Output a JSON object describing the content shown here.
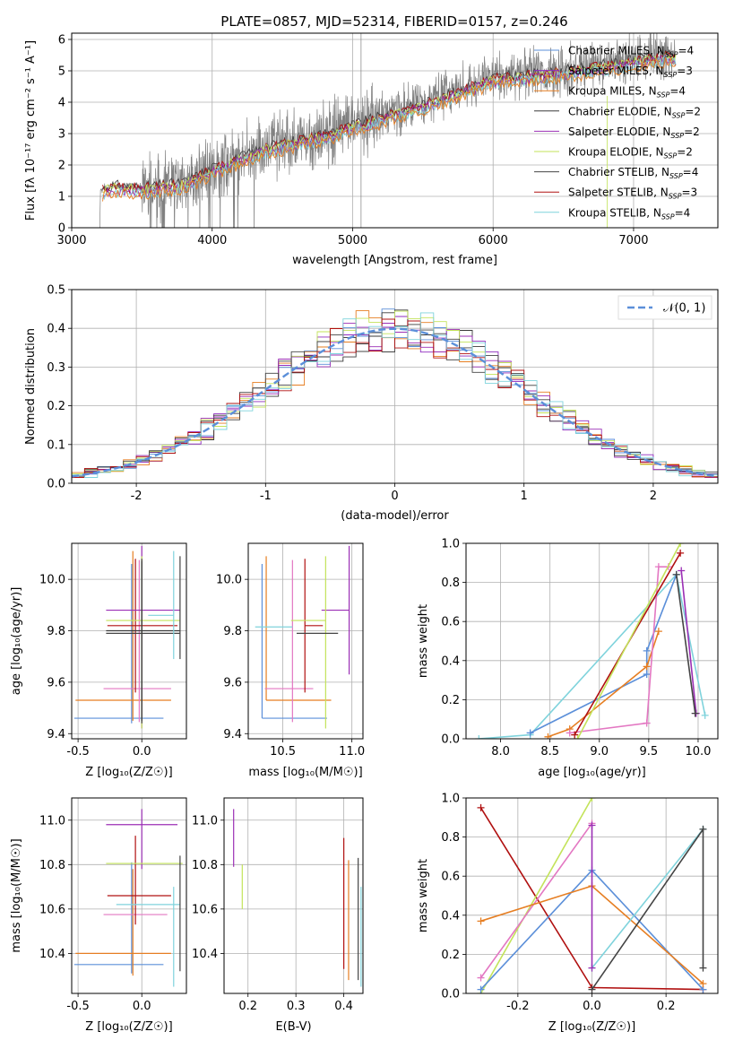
{
  "figure": {
    "title": "PLATE=0857, MJD=52314, FIBERID=0157, z=0.246"
  },
  "colors": {
    "Chabrier MILES": "#5b8fd9",
    "Salpeter MILES": "#8f2bbf",
    "Kroupa MILES": "#e67e22",
    "Chabrier ELODIE": "#3a3a3a",
    "Salpeter ELODIE": "#9b2fb5",
    "Kroupa ELODIE": "#c3e35a",
    "Chabrier STELIB": "#444444",
    "Salpeter STELIB": "#b01010",
    "Kroupa STELIB": "#7fd3dc",
    "Extra pink": "#e377c2",
    "data": "#808080"
  },
  "chart_data": [
    {
      "id": "spectrum",
      "type": "line",
      "xlabel": "wavelength [Angstrom, rest frame]",
      "ylabel": "Flux [fλ 10⁻¹⁷ erg cm⁻² s⁻¹ A⁻¹]",
      "xlim": [
        3000,
        7600
      ],
      "ylim": [
        0,
        6.2
      ],
      "xticks": [
        3000,
        4000,
        5000,
        6000,
        7000
      ],
      "yticks": [
        0,
        1,
        2,
        3,
        4,
        5,
        6
      ],
      "legend_position": "top-right",
      "legend": [
        {
          "label": "Chabrier MILES, N",
          "sub": "SSP",
          "tail": "=4"
        },
        {
          "label": "Salpeter MILES, N",
          "sub": "SSP",
          "tail": "=3"
        },
        {
          "label": "Kroupa MILES, N",
          "sub": "SSP",
          "tail": "=4"
        },
        {
          "label": "Chabrier ELODIE, N",
          "sub": "SSP",
          "tail": "=2"
        },
        {
          "label": "Salpeter ELODIE, N",
          "sub": "SSP",
          "tail": "=2"
        },
        {
          "label": "Kroupa ELODIE, N",
          "sub": "SSP",
          "tail": "=2"
        },
        {
          "label": "Chabrier STELIB, N",
          "sub": "SSP",
          "tail": "=4"
        },
        {
          "label": "Salpeter STELIB, N",
          "sub": "SSP",
          "tail": "=3"
        },
        {
          "label": "Kroupa STELIB, N",
          "sub": "SSP",
          "tail": "=4"
        }
      ],
      "model_trend": {
        "x": [
          3220,
          3300,
          3500,
          3800,
          4000,
          4400,
          4800,
          5200,
          5600,
          6000,
          6400,
          6800,
          7200
        ],
        "y": [
          1.25,
          1.35,
          1.3,
          1.45,
          1.9,
          2.6,
          3.0,
          3.55,
          4.1,
          4.8,
          4.95,
          5.2,
          5.5
        ]
      },
      "data_range": [
        3200,
        7300
      ]
    },
    {
      "id": "residuals",
      "type": "line",
      "xlabel": "(data-model)/error",
      "ylabel": "Normed distribution",
      "xlim": [
        -2.5,
        2.5
      ],
      "ylim": [
        0,
        0.5
      ],
      "xticks": [
        -2,
        -1,
        0,
        1,
        2
      ],
      "yticks": [
        0.0,
        0.1,
        0.2,
        0.3,
        0.4,
        0.5
      ],
      "legend_position": "top-right",
      "legend": [
        {
          "label": "𝒩(0, 1)"
        }
      ],
      "bin_width": 0.1
    },
    {
      "id": "age-vs-Z",
      "type": "scatter",
      "xlabel": "Z [log₁₀(Z/Z☉)]",
      "ylabel": "age  [log₁₀(age/yr)]",
      "xlim": [
        -0.55,
        0.35
      ],
      "ylim": [
        9.38,
        10.14
      ],
      "xticks": [
        -0.5,
        0.0
      ],
      "yticks": [
        9.4,
        9.6,
        9.8,
        10.0
      ],
      "points": [
        {
          "model": "Chabrier MILES",
          "x": -0.08,
          "xerr": [
            0.45,
            0.25
          ],
          "y": 9.46,
          "yerr": [
            0.02,
            0.6
          ]
        },
        {
          "model": "Kroupa MILES",
          "x": -0.07,
          "xerr": [
            0.45,
            0.3
          ],
          "y": 9.53,
          "yerr": [
            0.08,
            0.58
          ]
        },
        {
          "model": "Extra pink",
          "x": -0.02,
          "xerr": [
            0.28,
            0.25
          ],
          "y": 9.575,
          "yerr": [
            0.13,
            0.5
          ]
        },
        {
          "model": "Salpeter STELIB",
          "x": -0.05,
          "xerr": [
            0.22,
            0.33
          ],
          "y": 9.82,
          "yerr": [
            0.26,
            0.26
          ]
        },
        {
          "model": "Salpeter ELODIE",
          "x": 0.0,
          "xerr": [
            0.28,
            0.3
          ],
          "y": 9.88,
          "yerr": [
            0.46,
            0.25
          ]
        },
        {
          "model": "Kroupa ELODIE",
          "x": 0.0,
          "xerr": [
            0.28,
            0.3
          ],
          "y": 9.84,
          "yerr": [
            0.42,
            0.25
          ]
        },
        {
          "model": "Chabrier STELIB",
          "x": 0.0,
          "xerr": [
            0.28,
            0.3
          ],
          "y": 9.79,
          "yerr": [
            0.35,
            0.28
          ]
        },
        {
          "model": "Chabrier ELODIE",
          "x": 0.0,
          "xerr": [
            0.28,
            0.3
          ],
          "y": 9.8,
          "yerr": [
            0.35,
            0.28
          ]
        },
        {
          "model": "Kroupa STELIB",
          "x": 0.25,
          "xerr": [
            0.2,
            0.0
          ],
          "y": 9.86,
          "yerr": [
            0.17,
            0.25
          ]
        },
        {
          "model": "Chabrier STELIB",
          "x": 0.3,
          "xerr": [
            0.0,
            0.0
          ],
          "y": 9.79,
          "yerr": [
            0.1,
            0.3
          ]
        }
      ]
    },
    {
      "id": "age-vs-mass",
      "type": "scatter",
      "xlabel": "mass [log₁₀(M/M☉)]",
      "xlim": [
        10.25,
        11.08
      ],
      "ylim": [
        9.38,
        10.14
      ],
      "xticks": [
        10.5,
        11.0
      ],
      "yticks": [
        9.4,
        9.6,
        9.8,
        10.0
      ],
      "points": [
        {
          "model": "Chabrier MILES",
          "x": 10.35,
          "xerr": [
            0.0,
            0.47
          ],
          "y": 9.46,
          "yerr": [
            0.0,
            0.6
          ]
        },
        {
          "model": "Kroupa MILES",
          "x": 10.38,
          "xerr": [
            0.0,
            0.47
          ],
          "y": 9.53,
          "yerr": [
            0.0,
            0.56
          ]
        },
        {
          "model": "Extra pink",
          "x": 10.57,
          "xerr": [
            0.2,
            0.15
          ],
          "y": 9.575,
          "yerr": [
            0.13,
            0.5
          ]
        },
        {
          "model": "Salpeter STELIB",
          "x": 10.66,
          "xerr": [
            0.0,
            0.13
          ],
          "y": 9.82,
          "yerr": [
            0.26,
            0.26
          ]
        },
        {
          "model": "Salpeter ELODIE",
          "x": 10.98,
          "xerr": [
            0.2,
            0.0
          ],
          "y": 9.88,
          "yerr": [
            0.25,
            0.25
          ]
        },
        {
          "model": "Kroupa ELODIE",
          "x": 10.81,
          "xerr": [
            0.25,
            0.0
          ],
          "y": 9.84,
          "yerr": [
            0.42,
            0.25
          ]
        },
        {
          "model": "Chabrier STELIB",
          "x": 10.6,
          "xerr": [
            0.0,
            0.3
          ],
          "y": 9.79,
          "yerr": [
            0.0,
            0.0
          ]
        },
        {
          "model": "Kroupa STELIB",
          "x": 10.45,
          "xerr": [
            0.15,
            0.12
          ],
          "y": 9.815,
          "yerr": [
            0.0,
            0.0
          ]
        }
      ]
    },
    {
      "id": "mass-weight-vs-age",
      "type": "line",
      "xlabel": "age  [log₁₀(age/yr)]",
      "ylabel": "mass weight",
      "xlim": [
        7.65,
        10.2
      ],
      "ylim": [
        0,
        1
      ],
      "xticks": [
        8.0,
        8.5,
        9.0,
        9.5,
        10.0
      ],
      "yticks": [
        0.0,
        0.2,
        0.4,
        0.6,
        0.8,
        1.0
      ],
      "series": [
        {
          "model": "Kroupa STELIB",
          "x": [
            7.78,
            8.3,
            9.78,
            10.07
          ],
          "y": [
            0.0,
            0.02,
            0.84,
            0.12
          ]
        },
        {
          "model": "Chabrier MILES",
          "x": [
            8.3,
            9.48,
            9.48,
            9.78
          ],
          "y": [
            0.03,
            0.33,
            0.45,
            0.84
          ]
        },
        {
          "model": "Kroupa MILES",
          "x": [
            8.48,
            8.7,
            9.48,
            9.6
          ],
          "y": [
            0.01,
            0.05,
            0.37,
            0.55
          ]
        },
        {
          "model": "Extra pink",
          "x": [
            8.7,
            9.48,
            9.6,
            9.7
          ],
          "y": [
            0.03,
            0.08,
            0.88,
            0.88
          ]
        },
        {
          "model": "Salpeter STELIB",
          "x": [
            8.75,
            9.82
          ],
          "y": [
            0.02,
            0.95
          ]
        },
        {
          "model": "Kroupa ELODIE",
          "x": [
            8.78,
            9.82
          ],
          "y": [
            0.0,
            1.0
          ]
        },
        {
          "model": "Salpeter ELODIE",
          "x": [
            9.83,
            9.98
          ],
          "y": [
            0.86,
            0.13
          ]
        },
        {
          "model": "Chabrier STELIB",
          "x": [
            9.78,
            9.97
          ],
          "y": [
            0.84,
            0.13
          ]
        }
      ]
    },
    {
      "id": "mass-vs-Z",
      "type": "scatter",
      "xlabel": "Z [log₁₀(Z/Z☉)]",
      "ylabel": "mass [log₁₀(M/M☉)]",
      "xlim": [
        -0.55,
        0.35
      ],
      "ylim": [
        10.22,
        11.1
      ],
      "xticks": [
        -0.5,
        0.0
      ],
      "yticks": [
        10.4,
        10.6,
        10.8,
        11.0
      ],
      "points": [
        {
          "model": "Chabrier MILES",
          "x": -0.08,
          "xerr": [
            0.45,
            0.25
          ],
          "y": 10.35,
          "yerr": [
            0.04,
            0.46
          ]
        },
        {
          "model": "Kroupa MILES",
          "x": -0.07,
          "xerr": [
            0.45,
            0.3
          ],
          "y": 10.4,
          "yerr": [
            0.1,
            0.38
          ]
        },
        {
          "model": "Extra pink",
          "x": -0.02,
          "xerr": [
            0.28,
            0.22
          ],
          "y": 10.575,
          "yerr": [
            0.0,
            0.0
          ]
        },
        {
          "model": "Salpeter STELIB",
          "x": -0.05,
          "xerr": [
            0.22,
            0.28
          ],
          "y": 10.66,
          "yerr": [
            0.13,
            0.27
          ]
        },
        {
          "model": "Salpeter ELODIE",
          "x": 0.0,
          "xerr": [
            0.28,
            0.28
          ],
          "y": 10.98,
          "yerr": [
            0.2,
            0.07
          ]
        },
        {
          "model": "Kroupa ELODIE",
          "x": 0.0,
          "xerr": [
            0.28,
            0.32
          ],
          "y": 10.805,
          "yerr": [
            0.0,
            0.0
          ]
        },
        {
          "model": "Kroupa STELIB",
          "x": 0.0,
          "xerr": [
            0.2,
            0.3
          ],
          "y": 10.62,
          "yerr": [
            0.0,
            0.0
          ]
        },
        {
          "model": "Kroupa STELIB",
          "x": 0.25,
          "xerr": [
            0.0,
            0.0
          ],
          "y": 10.5,
          "yerr": [
            0.25,
            0.2
          ]
        },
        {
          "model": "Chabrier STELIB",
          "x": 0.3,
          "xerr": [
            0.0,
            0.0
          ],
          "y": 10.57,
          "yerr": [
            0.25,
            0.27
          ]
        }
      ]
    },
    {
      "id": "mass-vs-ebv",
      "type": "scatter",
      "xlabel": "E(B-V)",
      "xlim": [
        0.15,
        0.44
      ],
      "ylim": [
        10.22,
        11.1
      ],
      "xticks": [
        0.2,
        0.3,
        0.4
      ],
      "yticks": [
        10.4,
        10.6,
        10.8,
        11.0
      ],
      "points": [
        {
          "model": "Salpeter ELODIE",
          "x": 0.17,
          "y": 10.92,
          "yerr": [
            0.13,
            0.13
          ]
        },
        {
          "model": "Kroupa ELODIE",
          "x": 0.188,
          "y": 10.7,
          "yerr": [
            0.1,
            0.1
          ]
        },
        {
          "model": "Salpeter STELIB",
          "x": 0.4,
          "y": 10.6,
          "yerr": [
            0.27,
            0.32
          ]
        },
        {
          "model": "Kroupa MILES",
          "x": 0.41,
          "y": 10.55,
          "yerr": [
            0.27,
            0.27
          ]
        },
        {
          "model": "Chabrier STELIB",
          "x": 0.43,
          "y": 10.55,
          "yerr": [
            0.27,
            0.28
          ]
        },
        {
          "model": "Kroupa STELIB",
          "x": 0.436,
          "y": 10.5,
          "yerr": [
            0.25,
            0.2
          ]
        }
      ]
    },
    {
      "id": "mass-weight-vs-Z",
      "type": "line",
      "xlabel": "Z [log₁₀(Z/Z☉)]",
      "ylabel": "mass weight",
      "xlim": [
        -0.34,
        0.34
      ],
      "ylim": [
        0,
        1
      ],
      "xticks": [
        -0.2,
        0.0,
        0.2
      ],
      "yticks": [
        0.0,
        0.2,
        0.4,
        0.6,
        0.8,
        1.0
      ],
      "series": [
        {
          "model": "Salpeter STELIB",
          "x": [
            -0.3,
            0.0,
            0.3
          ],
          "y": [
            0.95,
            0.03,
            0.02
          ]
        },
        {
          "model": "Kroupa ELODIE",
          "x": [
            -0.3,
            0.0
          ],
          "y": [
            0.0,
            1.0
          ]
        },
        {
          "model": "Extra pink",
          "x": [
            -0.3,
            0.0
          ],
          "y": [
            0.08,
            0.87
          ]
        },
        {
          "model": "Chabrier MILES",
          "x": [
            -0.3,
            0.0,
            0.3
          ],
          "y": [
            0.02,
            0.63,
            0.02
          ]
        },
        {
          "model": "Kroupa MILES",
          "x": [
            -0.3,
            0.0,
            0.3
          ],
          "y": [
            0.37,
            0.55,
            0.05
          ]
        },
        {
          "model": "Kroupa STELIB",
          "x": [
            0.0,
            0.3
          ],
          "y": [
            0.13,
            0.84
          ]
        },
        {
          "model": "Chabrier STELIB",
          "x": [
            0.0,
            0.3,
            0.3
          ],
          "y": [
            0.02,
            0.84,
            0.13
          ]
        },
        {
          "model": "Salpeter ELODIE",
          "x": [
            0.0,
            0.0
          ],
          "y": [
            0.13,
            0.86
          ]
        }
      ]
    }
  ]
}
